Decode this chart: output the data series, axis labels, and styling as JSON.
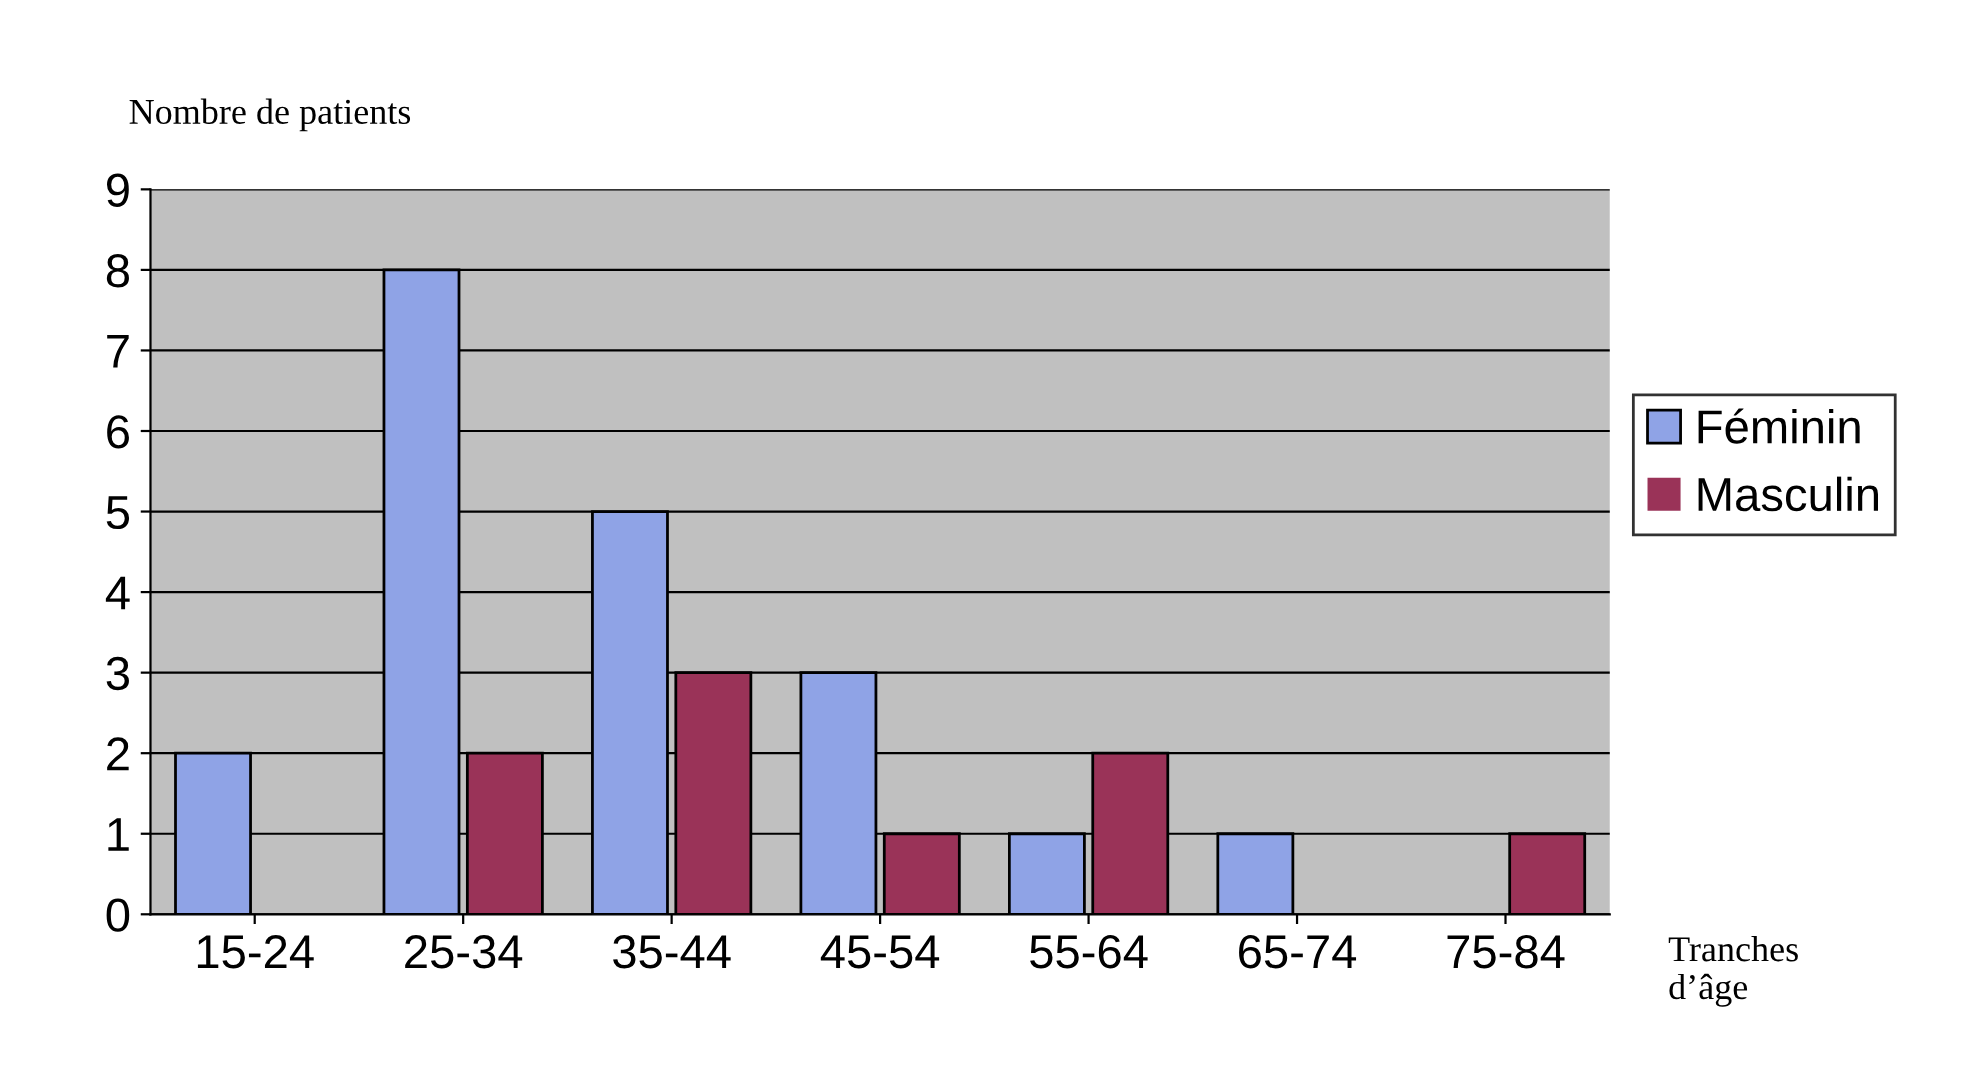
{
  "chart_data": {
    "type": "bar",
    "ylabel": "Nombre de patients",
    "xlabel": "Tranches\nd’âge",
    "categories": [
      "15-24",
      "25-34",
      "35-44",
      "45-54",
      "55-64",
      "65-74",
      "75-84"
    ],
    "series": [
      {
        "name": "Féminin",
        "color": "#8fa3e6",
        "values": [
          2,
          8,
          5,
          3,
          1,
          1,
          0
        ]
      },
      {
        "name": "Masculin",
        "color": "#9a3358",
        "values": [
          0,
          2,
          3,
          1,
          2,
          0,
          1
        ]
      }
    ],
    "ylim": [
      0,
      9
    ],
    "yticks": [
      0,
      1,
      2,
      3,
      4,
      5,
      6,
      7,
      8,
      9
    ],
    "grid": "y",
    "legend": "right"
  }
}
